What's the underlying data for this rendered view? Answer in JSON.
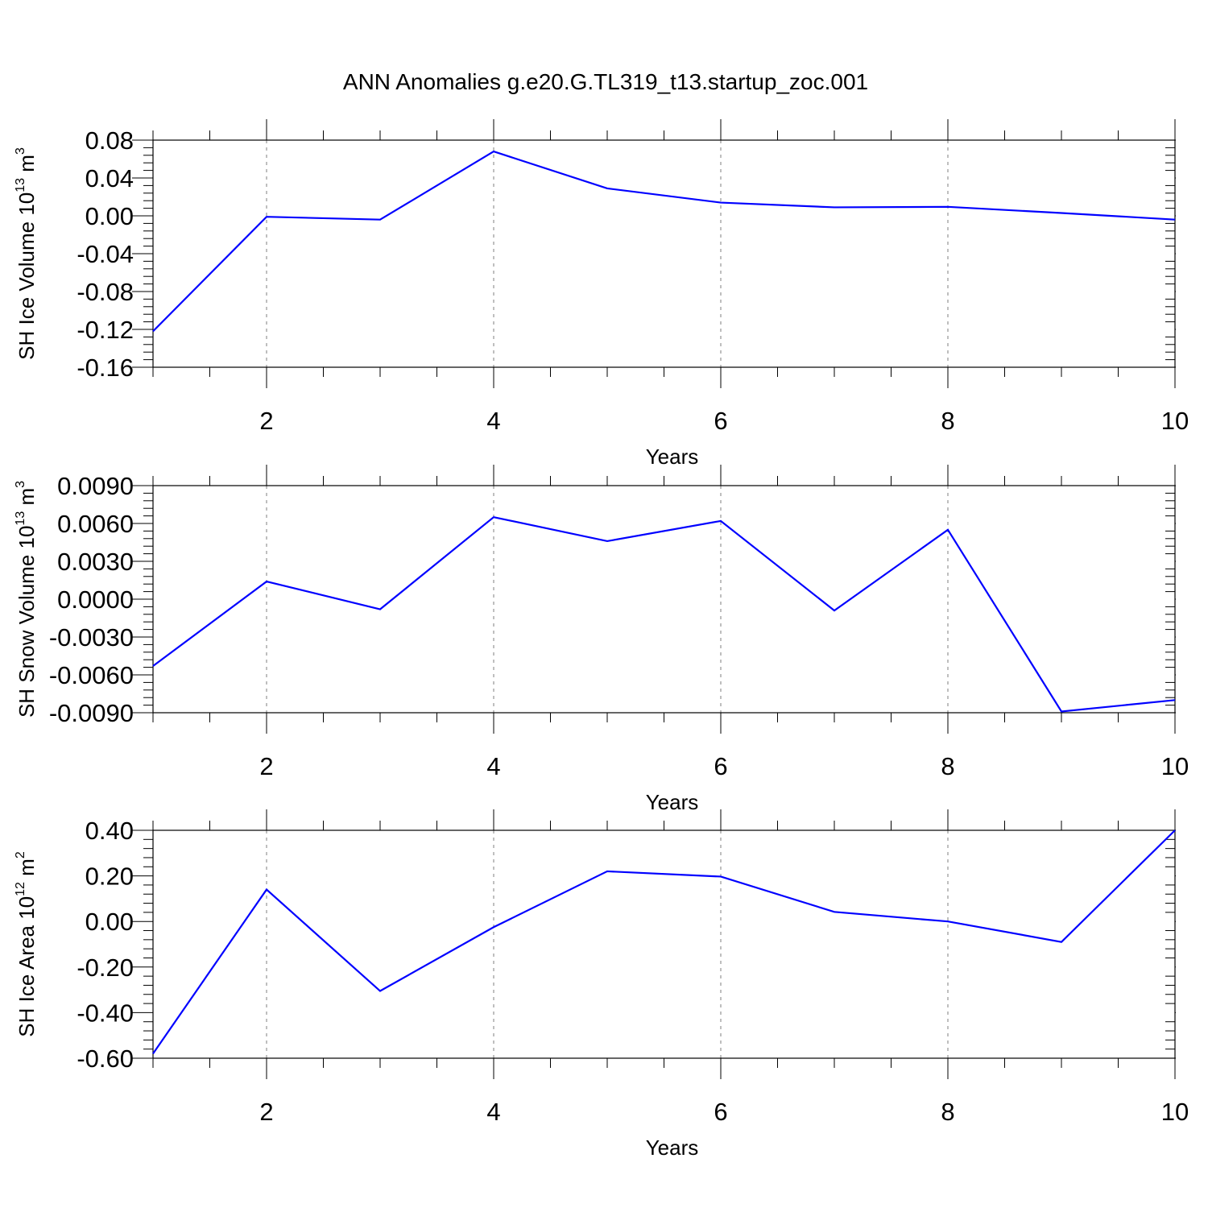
{
  "title": "ANN Anomalies g.e20.G.TL319_t13.startup_zoc.001",
  "line_color": "#0000ff",
  "chart_data": [
    {
      "type": "line",
      "xlabel": "Years",
      "ylabel": "SH Ice Volume 10",
      "ylabel_exponent": "13",
      "ylabel_unit": " m",
      "ylabel_unit_exponent": "3",
      "x": [
        1,
        2,
        3,
        4,
        5,
        6,
        7,
        8,
        9,
        10
      ],
      "series": [
        {
          "values": [
            -0.122,
            -0.001,
            -0.004,
            0.068,
            0.029,
            0.014,
            0.009,
            0.0095,
            0.003,
            -0.004
          ]
        }
      ],
      "xlim": [
        1,
        10
      ],
      "ylim": [
        -0.16,
        0.08
      ],
      "x_ticks": [
        "2",
        "4",
        "6",
        "8",
        "10"
      ],
      "y_ticks": [
        "0.08",
        "0.04",
        "0.00",
        "-0.04",
        "-0.08",
        "-0.12",
        "-0.16"
      ],
      "grid": "vertical dashed at major x ticks"
    },
    {
      "type": "line",
      "xlabel": "Years",
      "ylabel": "SH Snow Volume 10",
      "ylabel_exponent": "13",
      "ylabel_unit": " m",
      "ylabel_unit_exponent": "3",
      "x": [
        1,
        2,
        3,
        4,
        5,
        6,
        7,
        8,
        9,
        10
      ],
      "series": [
        {
          "values": [
            -0.0053,
            0.0014,
            -0.0008,
            0.0065,
            0.0046,
            0.0062,
            -0.0009,
            0.0055,
            -0.0089,
            -0.008
          ]
        }
      ],
      "xlim": [
        1,
        10
      ],
      "ylim": [
        -0.009,
        0.009
      ],
      "x_ticks": [
        "2",
        "4",
        "6",
        "8",
        "10"
      ],
      "y_ticks": [
        "0.0090",
        "0.0060",
        "0.0030",
        "0.0000",
        "-0.0030",
        "-0.0060",
        "-0.0090"
      ],
      "grid": "vertical dashed at major x ticks"
    },
    {
      "type": "line",
      "xlabel": "Years",
      "ylabel": "SH Ice Area 10",
      "ylabel_exponent": "12",
      "ylabel_unit": " m",
      "ylabel_unit_exponent": "2",
      "x": [
        1,
        2,
        3,
        4,
        5,
        6,
        7,
        8,
        9,
        10
      ],
      "series": [
        {
          "values": [
            -0.58,
            0.14,
            -0.305,
            -0.025,
            0.22,
            0.197,
            0.042,
            0.0,
            -0.09,
            0.4
          ]
        }
      ],
      "xlim": [
        1,
        10
      ],
      "ylim": [
        -0.6,
        0.4
      ],
      "x_ticks": [
        "2",
        "4",
        "6",
        "8",
        "10"
      ],
      "y_ticks": [
        "0.40",
        "0.20",
        "0.00",
        "-0.20",
        "-0.40",
        "-0.60"
      ],
      "grid": "vertical dashed at major x ticks"
    }
  ]
}
